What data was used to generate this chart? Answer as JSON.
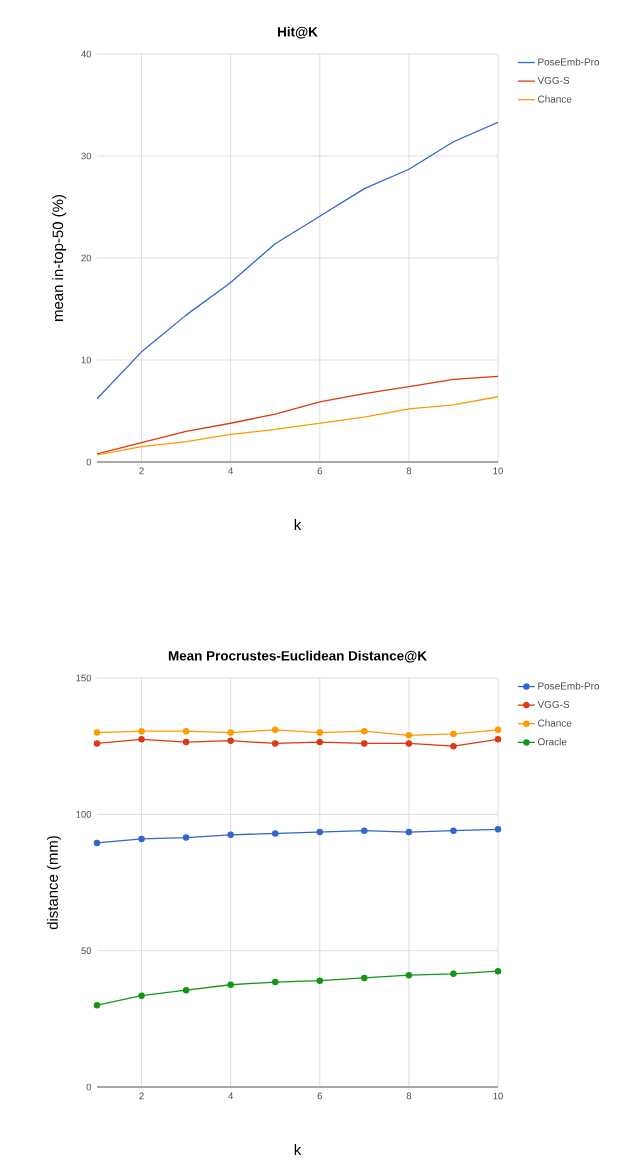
{
  "chart_data": [
    {
      "type": "line",
      "title": "Hit@K",
      "xlabel": "k",
      "ylabel": "mean in-top-50 (%)",
      "x": [
        1,
        2,
        3,
        4,
        5,
        6,
        7,
        8,
        9,
        10
      ],
      "series": [
        {
          "name": "PoseEmb-Pro",
          "color": "#3366cc",
          "values": [
            6.2,
            10.8,
            14.4,
            17.6,
            21.4,
            24.1,
            26.8,
            28.7,
            31.4,
            33.3
          ]
        },
        {
          "name": "VGG-S",
          "color": "#dc3912",
          "values": [
            0.8,
            1.9,
            3.0,
            3.8,
            4.7,
            5.9,
            6.7,
            7.4,
            8.1,
            8.4
          ]
        },
        {
          "name": "Chance",
          "color": "#ff9900",
          "values": [
            0.7,
            1.5,
            2.0,
            2.7,
            3.2,
            3.8,
            4.4,
            5.2,
            5.6,
            6.4
          ]
        }
      ],
      "xlim": [
        1,
        10
      ],
      "xticks": [
        2,
        4,
        6,
        8,
        10
      ],
      "ylim": [
        0,
        40
      ],
      "yticks": [
        0,
        10,
        20,
        30,
        40
      ],
      "grid": true,
      "legend": "top right",
      "marker": "none",
      "line_style": "solid"
    },
    {
      "type": "line",
      "title": "Mean Procrustes-Euclidean Distance@K",
      "xlabel": "k",
      "ylabel": "distance (mm)",
      "x": [
        1,
        2,
        3,
        4,
        5,
        6,
        7,
        8,
        9,
        10
      ],
      "series": [
        {
          "name": "PoseEmb-Pro",
          "color": "#3366cc",
          "values": [
            89.5,
            91,
            91.5,
            92.5,
            93,
            93.5,
            94,
            93.5,
            94,
            94.5
          ]
        },
        {
          "name": "VGG-S",
          "color": "#dc3912",
          "values": [
            126,
            127.5,
            126.5,
            127,
            126,
            126.5,
            126,
            126,
            125,
            127.5
          ]
        },
        {
          "name": "Chance",
          "color": "#ff9900",
          "values": [
            130,
            130.5,
            130.5,
            130,
            131,
            130,
            130.5,
            129,
            129.5,
            131
          ]
        },
        {
          "name": "Oracle",
          "color": "#109618",
          "values": [
            30,
            33.5,
            35.5,
            37.5,
            38.5,
            39,
            40,
            41,
            41.5,
            42.5
          ]
        }
      ],
      "xlim": [
        1,
        10
      ],
      "xticks": [
        2,
        4,
        6,
        8,
        10
      ],
      "ylim": [
        0,
        150
      ],
      "yticks": [
        0,
        50,
        100,
        150
      ],
      "grid": true,
      "legend": "top right",
      "marker": "circle",
      "line_style": "solid"
    }
  ]
}
